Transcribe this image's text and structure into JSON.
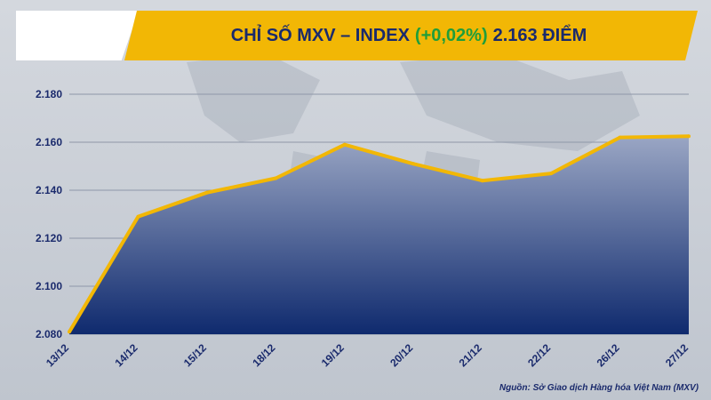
{
  "header": {
    "title_main": "CHỈ SỐ MXV – INDEX",
    "title_change": "(+0,02%)",
    "title_value": "2.163 ĐIỂM"
  },
  "source": "Nguồn: Sở Giao dịch Hàng hóa Việt Nam (MXV)",
  "colors": {
    "banner": "#f2b705",
    "title_text": "#1a2a6c",
    "change_text": "#1f9e3a",
    "line": "#f2b705",
    "area_top": "#9aa6c4",
    "area_bottom": "#0f2a6e"
  },
  "chart_data": {
    "type": "area",
    "title": "CHỈ SỐ MXV – INDEX (+0,02%) 2.163 ĐIỂM",
    "categories": [
      "13/12",
      "14/12",
      "15/12",
      "18/12",
      "19/12",
      "20/12",
      "21/12",
      "22/12",
      "26/12",
      "27/12"
    ],
    "values": [
      2081,
      2129,
      2139,
      2145,
      2159,
      2151,
      2144,
      2147,
      2162,
      2162.5
    ],
    "ylim": [
      2080,
      2180
    ],
    "yticks": [
      2080,
      2100,
      2120,
      2140,
      2160,
      2180
    ],
    "ytick_labels": [
      "2.080",
      "2.100",
      "2.120",
      "2.140",
      "2.160",
      "2.180"
    ],
    "grid": true,
    "xlabel": "",
    "ylabel": ""
  }
}
